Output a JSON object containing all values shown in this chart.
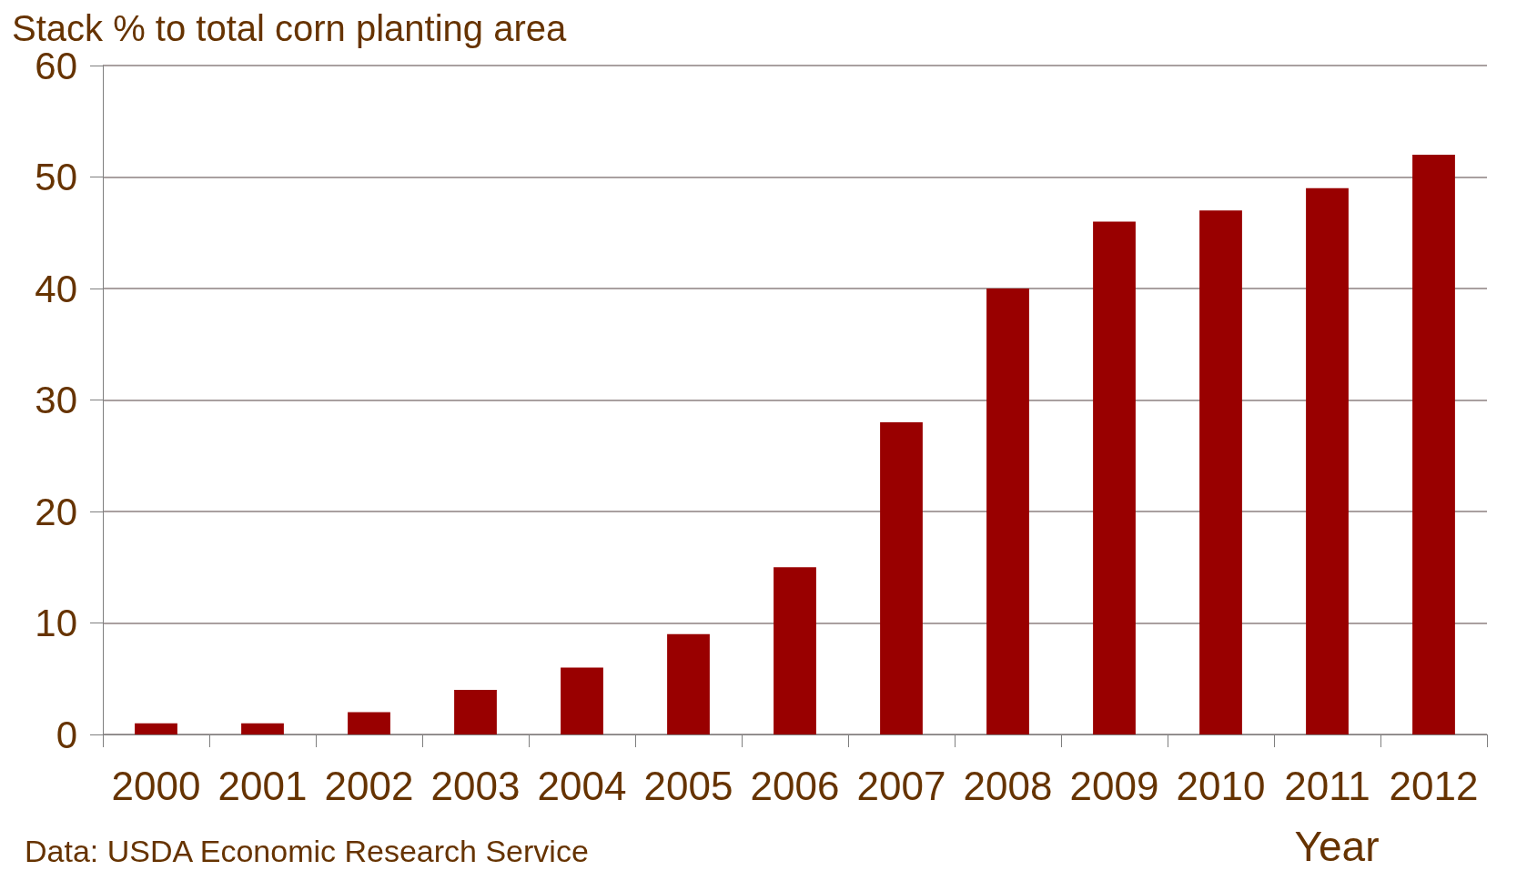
{
  "chart_data": {
    "type": "bar",
    "ylabel": "Stack % to total corn planting area",
    "xlabel": "Year",
    "categories": [
      "2000",
      "2001",
      "2002",
      "2003",
      "2004",
      "2005",
      "2006",
      "2007",
      "2008",
      "2009",
      "2010",
      "2011",
      "2012"
    ],
    "values": [
      1,
      1,
      2,
      4,
      6,
      9,
      15,
      28,
      40,
      46,
      47,
      49,
      52
    ],
    "color": "#990000",
    "ylim": [
      0,
      60
    ],
    "yticks": [
      0,
      10,
      20,
      30,
      40,
      50,
      60
    ],
    "grid": "y",
    "annotations": [
      "Data: USDA Economic Research Service"
    ]
  }
}
